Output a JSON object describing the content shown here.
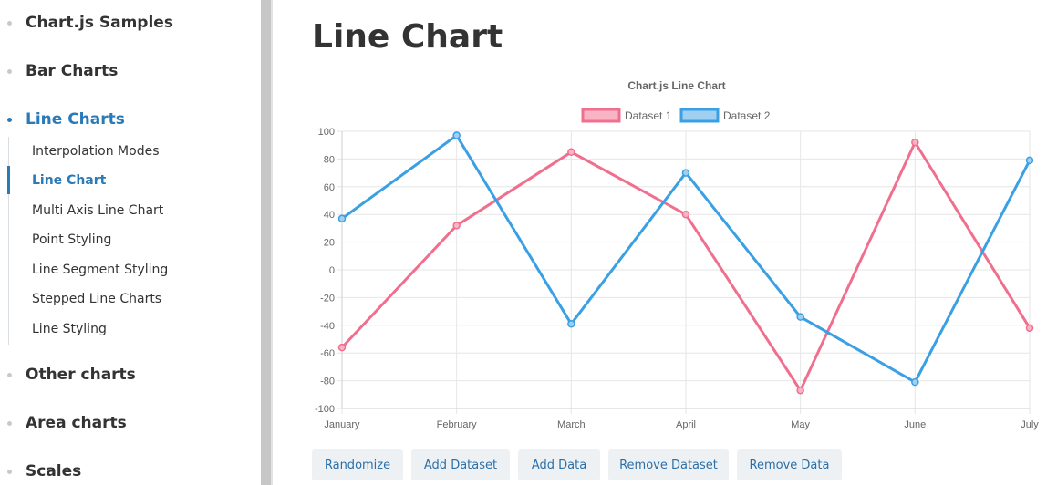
{
  "sidebar": {
    "sections": [
      {
        "label": "Chart.js Samples",
        "active": false
      },
      {
        "label": "Bar Charts",
        "active": false
      },
      {
        "label": "Line Charts",
        "active": true
      },
      {
        "label": "Other charts",
        "active": false
      },
      {
        "label": "Area charts",
        "active": false
      },
      {
        "label": "Scales",
        "active": false
      }
    ],
    "line_items": [
      {
        "label": "Interpolation Modes",
        "active": false
      },
      {
        "label": "Line Chart",
        "active": true
      },
      {
        "label": "Multi Axis Line Chart",
        "active": false
      },
      {
        "label": "Point Styling",
        "active": false
      },
      {
        "label": "Line Segment Styling",
        "active": false
      },
      {
        "label": "Stepped Line Charts",
        "active": false
      },
      {
        "label": "Line Styling",
        "active": false
      }
    ]
  },
  "main": {
    "title": "Line Chart",
    "buttons": [
      {
        "label": "Randomize"
      },
      {
        "label": "Add Dataset"
      },
      {
        "label": "Add Data"
      },
      {
        "label": "Remove Dataset"
      },
      {
        "label": "Remove Data"
      }
    ]
  },
  "colors": {
    "accent": "#2a7ab8",
    "dataset1": "#f06f8e",
    "dataset2": "#3aa0e3"
  },
  "chart_data": {
    "type": "line",
    "title": "Chart.js Line Chart",
    "xlabel": "",
    "ylabel": "",
    "categories": [
      "January",
      "February",
      "March",
      "April",
      "May",
      "June",
      "July"
    ],
    "series": [
      {
        "name": "Dataset 1",
        "color": "#f06f8e",
        "fill": "#f8b4c4",
        "values": [
          -56,
          32,
          85,
          40,
          -87,
          92,
          -42
        ]
      },
      {
        "name": "Dataset 2",
        "color": "#3aa0e3",
        "fill": "#9fd0f2",
        "values": [
          37,
          97,
          -39,
          70,
          -34,
          -81,
          79
        ]
      }
    ],
    "ylim": [
      -100,
      100
    ],
    "yticks": [
      100,
      80,
      60,
      40,
      20,
      0,
      -20,
      -40,
      -60,
      -80,
      -100
    ],
    "grid": true,
    "legend": "top"
  }
}
